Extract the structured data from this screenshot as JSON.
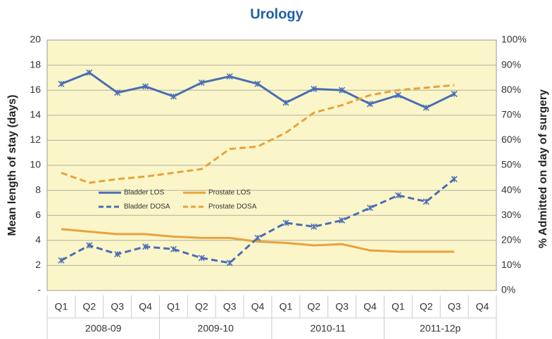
{
  "chart_data": {
    "type": "line",
    "title": "Urology",
    "ylabel": "Mean length of stay (days)",
    "y2label": "% Admitted on day of surgery",
    "categories": [
      "Q1",
      "Q2",
      "Q3",
      "Q4",
      "Q1",
      "Q2",
      "Q3",
      "Q4",
      "Q1",
      "Q2",
      "Q3",
      "Q4",
      "Q1",
      "Q2",
      "Q3",
      "Q4"
    ],
    "groups": [
      "2008-09",
      "2009-10",
      "2010-11",
      "2011-12p"
    ],
    "ylim": [
      0,
      20
    ],
    "yticks": [
      {
        "value": 0,
        "label": "-"
      },
      2,
      4,
      6,
      8,
      10,
      12,
      14,
      16,
      18,
      20
    ],
    "y2lim": [
      0,
      100
    ],
    "y2ticks": [
      {
        "value": 0,
        "label": "0%"
      },
      {
        "value": 10,
        "label": "10%"
      },
      {
        "value": 20,
        "label": "20%"
      },
      {
        "value": 30,
        "label": "30%"
      },
      {
        "value": 40,
        "label": "40%"
      },
      {
        "value": 50,
        "label": "50%"
      },
      {
        "value": 60,
        "label": "60%"
      },
      {
        "value": 70,
        "label": "70%"
      },
      {
        "value": 80,
        "label": "80%"
      },
      {
        "value": 90,
        "label": "90%"
      },
      {
        "value": 100,
        "label": "100%"
      }
    ],
    "grid": true,
    "series": [
      {
        "name": "Bladder LOS",
        "color": "#4a6eb4",
        "dash": false,
        "marker": "x",
        "values": [
          16.5,
          17.4,
          15.8,
          16.3,
          15.5,
          16.6,
          17.1,
          16.5,
          15.0,
          16.1,
          16.0,
          14.9,
          15.6,
          14.6,
          15.7,
          null
        ]
      },
      {
        "name": "Prostate LOS",
        "color": "#e8a23c",
        "dash": false,
        "marker": "none",
        "values": [
          4.9,
          4.7,
          4.5,
          4.5,
          4.3,
          4.2,
          4.2,
          3.9,
          3.8,
          3.6,
          3.7,
          3.2,
          3.1,
          3.1,
          3.1,
          null
        ]
      },
      {
        "name": "Bladder DOSA",
        "color": "#4a6eb4",
        "dash": true,
        "marker": "x",
        "axis": "y2",
        "values": [
          12,
          18,
          14.5,
          17.5,
          16.5,
          13,
          11,
          21,
          27,
          25.5,
          28,
          33,
          38,
          35.5,
          44.5,
          null
        ]
      },
      {
        "name": "Prostate DOSA",
        "color": "#e8a23c",
        "dash": true,
        "marker": "none",
        "axis": "y2",
        "values": [
          47,
          43,
          44.5,
          45.5,
          47,
          48.5,
          56.5,
          57.5,
          63,
          71,
          74,
          78,
          80,
          81,
          82,
          null
        ]
      }
    ]
  }
}
